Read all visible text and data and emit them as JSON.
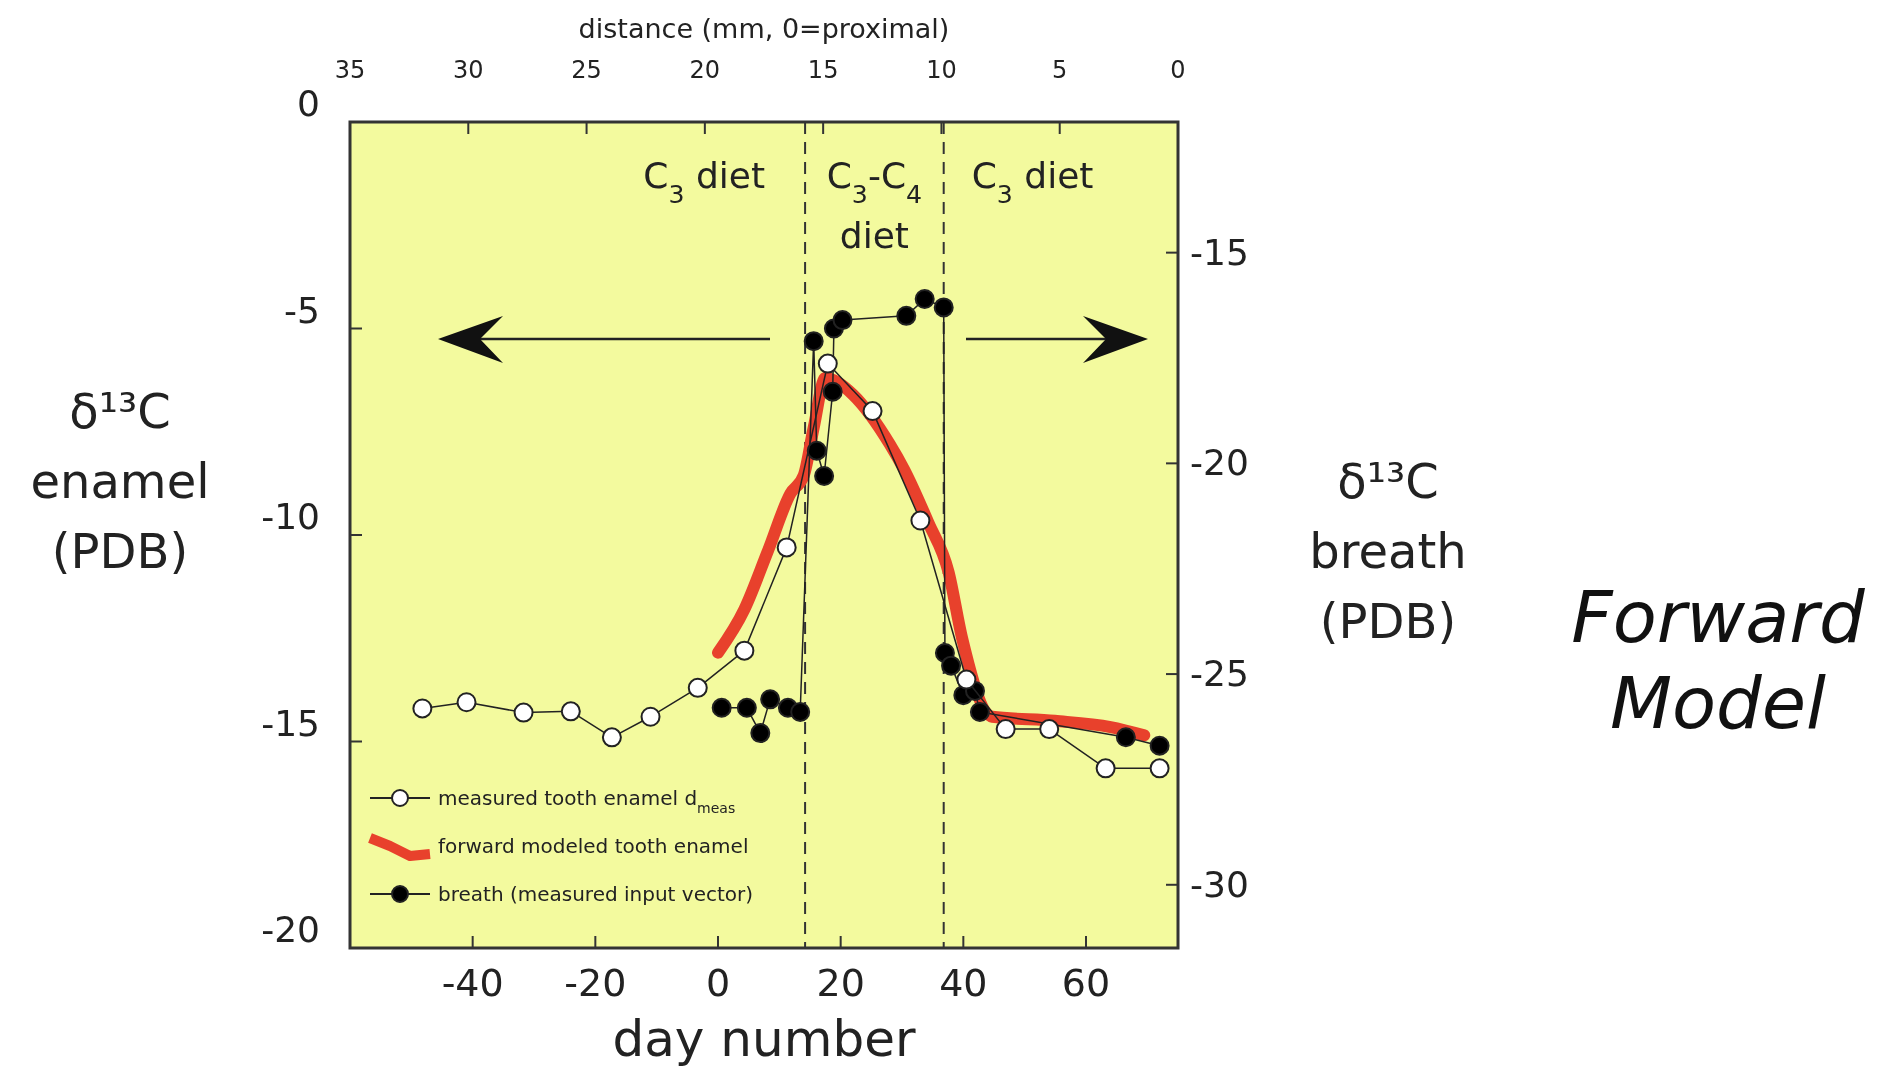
{
  "chart_data": {
    "type": "line",
    "title": "Forward Model",
    "xlabel": "day number",
    "x2label": "distance (mm, 0=proximal)",
    "ylabel": "δ¹³C\nenamel\n(PDB)",
    "y2label": "δ¹³C\nbreath\n(PDB)",
    "xlim": [
      -60,
      75
    ],
    "xticks": [
      -40,
      -20,
      0,
      20,
      40,
      60
    ],
    "x2lim": [
      35,
      0
    ],
    "x2ticks": [
      35,
      30,
      25,
      20,
      15,
      10,
      5,
      0
    ],
    "ylim": [
      -20,
      0
    ],
    "yticks": [
      0,
      -5,
      -10,
      -15,
      -20
    ],
    "y2lim": [
      -31.5,
      -11.9
    ],
    "y2ticks": [
      -15,
      -20,
      -25,
      -30
    ],
    "legend": "bottom left",
    "grid": false,
    "ref_lines": [
      {
        "axis": "x",
        "value": 14.2,
        "line_style": "dashed"
      },
      {
        "axis": "x",
        "value": 36.8,
        "line_style": "dashed"
      }
    ],
    "annotations": [
      "C$_{3}$ diet",
      "C$_{3}$-C$_{4}$\ndiet",
      "C$_{3}$ diet"
    ],
    "series": [
      {
        "name": "measured tooth enamel d$_{meas}$",
        "color": "#ffffff",
        "marker": "circle",
        "x": [
          -48.2,
          -41,
          -31.7,
          -24,
          -17.3,
          -11,
          -3.3,
          4.3,
          11.2,
          17.9,
          25.2,
          33,
          40.5,
          46.9,
          54,
          63.2,
          72
        ],
        "values": [
          -14.2,
          -14.05,
          -14.3,
          -14.27,
          -14.9,
          -14.4,
          -13.7,
          -12.8,
          -10.3,
          -5.85,
          -7,
          -9.65,
          -13.5,
          -14.7,
          -14.7,
          -15.65,
          -15.65
        ]
      },
      {
        "name": "forward modeled tooth enamel",
        "color": "#e8412c",
        "marker": "none",
        "x": [
          0,
          4.3,
          8.1,
          11.8,
          14,
          15.6,
          17.5,
          19.5,
          22,
          28,
          30.3,
          34.3,
          37.6,
          39.8,
          44.7,
          54.9,
          64,
          69.5
        ],
        "values": [
          -12.85,
          -11.8,
          -10.4,
          -9,
          -8.55,
          -7.4,
          -6.2,
          -6.3,
          -6.6,
          -7.8,
          -8.4,
          -9.7,
          -10.9,
          -12.5,
          -14.4,
          -14.5,
          -14.65,
          -14.85
        ]
      },
      {
        "name": "breath (measured input vector)",
        "color": "#000000",
        "marker": "circle",
        "axis": "y2",
        "x": [
          0.6,
          4.7,
          6.9,
          8.5,
          11.4,
          13.4,
          15.6,
          16.1,
          17.3,
          18.7,
          18.9,
          20.3,
          30.7,
          33.7,
          36.8,
          37,
          38,
          40,
          41.9,
          42.7,
          66.5,
          72
        ],
        "values": [
          -25.8,
          -25.8,
          -26.4,
          -25.6,
          -25.8,
          -25.9,
          -17.1,
          -19.7,
          -20.3,
          -18.3,
          -16.8,
          -16.6,
          -16.5,
          -16.1,
          -16.3,
          -24.5,
          -24.8,
          -25.5,
          -25.4,
          -25.9,
          -26.5,
          -26.7
        ]
      }
    ]
  }
}
